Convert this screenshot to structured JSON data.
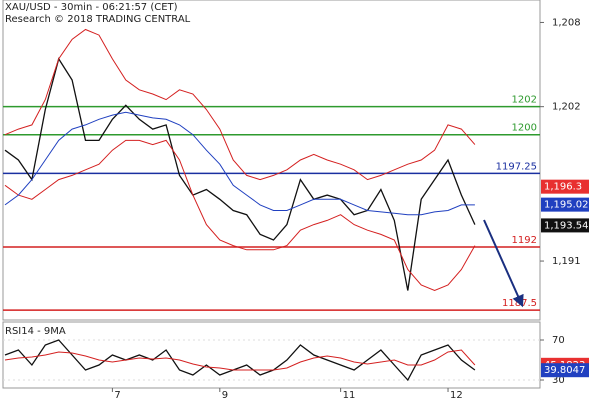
{
  "chart_data": [
    {
      "type": "line",
      "title": "XAU/USD - 30min - 06:21:57 (CET)",
      "subtitle": "Research © 2018 TRADING CENTRAL",
      "ylim": [
        1186.8,
        1209.6
      ],
      "yticks": [
        {
          "value": 1191,
          "label": "1,191"
        },
        {
          "value": 1202,
          "label": "1,202"
        },
        {
          "value": 1208,
          "label": "1,208"
        }
      ],
      "xlim": [
        0,
        40
      ],
      "series": [
        {
          "color": "#111111",
          "values": [
            1198.9,
            1198.2,
            1196.8,
            1201.8,
            1205.4,
            1203.9,
            1199.6,
            1199.6,
            1201.1,
            1202.1,
            1201.1,
            1200.4,
            1200.7,
            1197.1,
            1195.7,
            1196.1,
            1195.4,
            1194.6,
            1194.3,
            1192.9,
            1192.5,
            1193.6,
            1196.8,
            1195.4,
            1195.7,
            1195.4,
            1194.3,
            1194.6,
            1196.1,
            1193.9,
            1188.9,
            1195.4,
            1196.8,
            1198.2,
            1195.7,
            1193.6
          ]
        },
        {
          "color": "#d42020",
          "values": [
            1200,
            1200.4,
            1200.7,
            1202.5,
            1205.4,
            1206.8,
            1207.5,
            1207.1,
            1205.4,
            1203.9,
            1203.2,
            1202.9,
            1202.5,
            1203.2,
            1202.9,
            1201.8,
            1200.4,
            1198.2,
            1197.1,
            1196.8,
            1197.1,
            1197.5,
            1198.2,
            1198.6,
            1198.2,
            1197.9,
            1197.5,
            1196.8,
            1197.1,
            1197.5,
            1197.9,
            1198.2,
            1198.9,
            1200.7,
            1200.4,
            1199.3
          ]
        },
        {
          "color": "#d42020",
          "values": [
            1196.4,
            1195.7,
            1195.4,
            1196.1,
            1196.8,
            1197.1,
            1197.5,
            1197.9,
            1198.9,
            1199.6,
            1199.6,
            1199.3,
            1199.6,
            1198.2,
            1195.7,
            1193.6,
            1192.5,
            1192.1,
            1191.8,
            1191.8,
            1191.8,
            1192.1,
            1193.2,
            1193.6,
            1193.9,
            1194.3,
            1193.6,
            1193.2,
            1192.9,
            1192.5,
            1190.4,
            1189.3,
            1188.9,
            1189.3,
            1190.4,
            1192.1
          ]
        },
        {
          "color": "#2040c0",
          "values": [
            1195,
            1195.7,
            1196.8,
            1198.2,
            1199.6,
            1200.4,
            1200.7,
            1201.1,
            1201.4,
            1201.6,
            1201.4,
            1201.2,
            1201.1,
            1200.7,
            1200,
            1198.9,
            1197.9,
            1196.4,
            1195.7,
            1195,
            1194.6,
            1194.6,
            1195,
            1195.4,
            1195.4,
            1195.4,
            1195,
            1194.6,
            1194.5,
            1194.4,
            1194.3,
            1194.3,
            1194.5,
            1194.6,
            1195,
            1195
          ]
        }
      ],
      "levels": [
        {
          "value": 1202,
          "color": "#2e9a2e"
        },
        {
          "value": 1200,
          "color": "#2e9a2e"
        },
        {
          "value": 1197.25,
          "color": "#1a2fa0"
        },
        {
          "value": 1192,
          "color": "#d42020"
        },
        {
          "value": 1187.5,
          "color": "#d42020"
        }
      ],
      "price_labels": [
        {
          "value": 1196.3,
          "label": "1,196.3",
          "color": "#e83030"
        },
        {
          "value": 1195.02,
          "label": "1,195.02",
          "color": "#2040c0"
        },
        {
          "value": 1193.54,
          "label": "1,193.54",
          "color": "#111111"
        }
      ]
    },
    {
      "type": "line",
      "title": "RSI14 - 9MA",
      "ylim": [
        22,
        88
      ],
      "yticks": [
        30,
        70
      ],
      "xlim": [
        0,
        40
      ],
      "xticks": [
        {
          "value": 8,
          "label": "7"
        },
        {
          "value": 16,
          "label": "9"
        },
        {
          "value": 25,
          "label": "11"
        },
        {
          "value": 33,
          "label": "12"
        }
      ],
      "series": [
        {
          "color": "#111111",
          "values": [
            55,
            60,
            45,
            65,
            70,
            55,
            40,
            45,
            55,
            50,
            55,
            50,
            60,
            40,
            35,
            45,
            35,
            40,
            45,
            35,
            40,
            50,
            65,
            55,
            50,
            45,
            40,
            50,
            60,
            45,
            30,
            55,
            60,
            65,
            50,
            40
          ]
        },
        {
          "color": "#d42020",
          "values": [
            50,
            52,
            53,
            55,
            58,
            57,
            54,
            50,
            48,
            50,
            52,
            51,
            52,
            50,
            46,
            43,
            42,
            40,
            40,
            40,
            40,
            42,
            48,
            52,
            54,
            52,
            48,
            46,
            48,
            50,
            45,
            45,
            50,
            58,
            60,
            45
          ]
        }
      ],
      "markers": [
        {
          "value": 45.1823,
          "color": "#e83030"
        },
        {
          "value": 39.8047,
          "color": "#2040c0"
        }
      ]
    }
  ]
}
